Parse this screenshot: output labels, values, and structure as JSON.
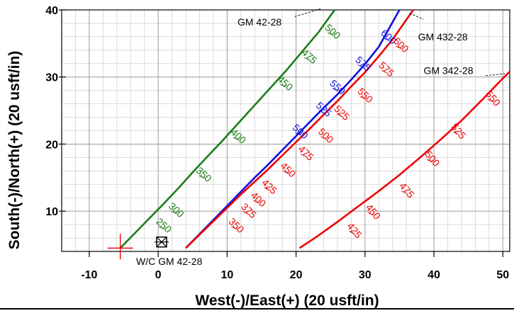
{
  "chart_data": {
    "type": "line",
    "xlabel": "West(-)/East(+) (20 usft/in)",
    "ylabel": "South(-)/North(+) (20 usft/in)",
    "xlim": [
      -14,
      51
    ],
    "ylim": [
      4,
      40
    ],
    "xticks": [
      -10,
      0,
      10,
      20,
      30,
      40,
      50
    ],
    "yticks": [
      10,
      20,
      30,
      40
    ],
    "grid": true,
    "minor_grid_step": 2,
    "series": [
      {
        "name": "GM 42-28",
        "color": "#1a7d1a",
        "x": [
          -5.5,
          -3.5,
          -1.4,
          0.7,
          2.9,
          5.1,
          7.2,
          9.5,
          11.7,
          14.0,
          16.3,
          18.6,
          20.9,
          23.2,
          25.6
        ],
        "y": [
          4.5,
          6.6,
          8.8,
          11.0,
          13.4,
          15.9,
          18.2,
          20.7,
          23.2,
          25.8,
          28.4,
          31.0,
          33.8,
          36.6,
          40.0
        ],
        "md_labels": [
          {
            "text": "250",
            "x": 0.5,
            "y": 7.5
          },
          {
            "text": "300",
            "x": 2.3,
            "y": 9.8
          },
          {
            "text": "350",
            "x": 6.3,
            "y": 15.1
          },
          {
            "text": "400",
            "x": 11.3,
            "y": 20.8
          },
          {
            "text": "450",
            "x": 18.1,
            "y": 28.7
          },
          {
            "text": "475",
            "x": 21.6,
            "y": 32.7
          },
          {
            "text": "500",
            "x": 25.0,
            "y": 36.4
          }
        ]
      },
      {
        "name": "GM 432-28 (offset)",
        "color": "#1010e0",
        "x": [
          4.0,
          6.0,
          8.0,
          10.0,
          12.0,
          14.0,
          16.0,
          18.0,
          20.0,
          22.0,
          24.0,
          26.0,
          28.0,
          30.0,
          32.0,
          35.0
        ],
        "y": [
          4.5,
          6.6,
          8.7,
          10.8,
          12.9,
          15.0,
          17.0,
          19.1,
          21.2,
          23.3,
          25.4,
          27.4,
          29.6,
          31.9,
          34.5,
          40.0
        ],
        "md_labels": [
          {
            "text": "500",
            "x": 20.3,
            "y": 21.5
          },
          {
            "text": "525",
            "x": 23.7,
            "y": 24.8
          },
          {
            "text": "550",
            "x": 25.7,
            "y": 28.1
          },
          {
            "text": "575",
            "x": 29.4,
            "y": 31.6
          },
          {
            "text": "600",
            "x": 33.1,
            "y": 35.6
          }
        ]
      },
      {
        "name": "GM 432-28",
        "color": "#ee0000",
        "x": [
          4.0,
          6.0,
          8.0,
          10.0,
          12.0,
          14.0,
          16.0,
          18.0,
          20.0,
          22.0,
          24.0,
          26.0,
          28.0,
          30.0,
          32.0,
          34.0,
          37.0
        ],
        "y": [
          4.5,
          6.5,
          8.5,
          10.5,
          12.5,
          14.4,
          16.3,
          18.3,
          20.3,
          22.3,
          24.4,
          26.4,
          28.6,
          30.7,
          33.1,
          35.6,
          40.0
        ],
        "md_labels": [
          {
            "text": "350",
            "x": 11.0,
            "y": 7.5
          },
          {
            "text": "375",
            "x": 12.8,
            "y": 9.7
          },
          {
            "text": "400",
            "x": 14.2,
            "y": 11.4
          },
          {
            "text": "425",
            "x": 15.8,
            "y": 13.3
          },
          {
            "text": "450",
            "x": 18.5,
            "y": 15.8
          },
          {
            "text": "475",
            "x": 21.1,
            "y": 18.3
          },
          {
            "text": "500",
            "x": 24.0,
            "y": 20.9
          },
          {
            "text": "525",
            "x": 26.3,
            "y": 24.3
          },
          {
            "text": "550",
            "x": 29.7,
            "y": 26.9
          },
          {
            "text": "575",
            "x": 32.8,
            "y": 30.8
          },
          {
            "text": "600",
            "x": 34.9,
            "y": 34.4
          }
        ]
      },
      {
        "name": "GM 342-28",
        "color": "#ee0000",
        "x": [
          20.5,
          23.0,
          26.0,
          29.0,
          32.0,
          35.0,
          38.0,
          41.0,
          44.0,
          47.0,
          50.0,
          51.0
        ],
        "y": [
          4.5,
          6.2,
          8.4,
          10.7,
          13.0,
          15.4,
          18.0,
          20.7,
          23.5,
          26.6,
          29.8,
          30.8
        ],
        "md_labels": [
          {
            "text": "425",
            "x": 28.1,
            "y": 6.8
          },
          {
            "text": "450",
            "x": 30.8,
            "y": 9.6
          },
          {
            "text": "475",
            "x": 35.7,
            "y": 12.8
          },
          {
            "text": "500",
            "x": 39.4,
            "y": 17.5
          },
          {
            "text": "525",
            "x": 43.2,
            "y": 21.6
          },
          {
            "text": "550",
            "x": 48.2,
            "y": 26.5
          }
        ]
      }
    ],
    "annotations": [
      {
        "text": "GM 42-28",
        "x": 11.5,
        "y": 38.2,
        "leader": [
          [
            19.8,
            39.0
          ],
          [
            23.7,
            40.2
          ]
        ]
      },
      {
        "text": "GM 432-28",
        "x": 37.7,
        "y": 36.0,
        "leader": [
          [
            36.5,
            39.5
          ],
          [
            38.5,
            38.6
          ]
        ]
      },
      {
        "text": "GM 342-28",
        "x": 38.5,
        "y": 31.0,
        "leader": [
          [
            47.5,
            30.2
          ],
          [
            50.3,
            30.5
          ]
        ]
      },
      {
        "text": "W/C GM 42-28",
        "x": -3.2,
        "y": 2.5
      }
    ],
    "markers": [
      {
        "name": "target-crosshair",
        "x": -5.5,
        "y": 4.5,
        "color": "#ee0000"
      },
      {
        "name": "well-center-symbol",
        "x": 0.5,
        "y": 5.3,
        "color": "#000000"
      }
    ]
  }
}
